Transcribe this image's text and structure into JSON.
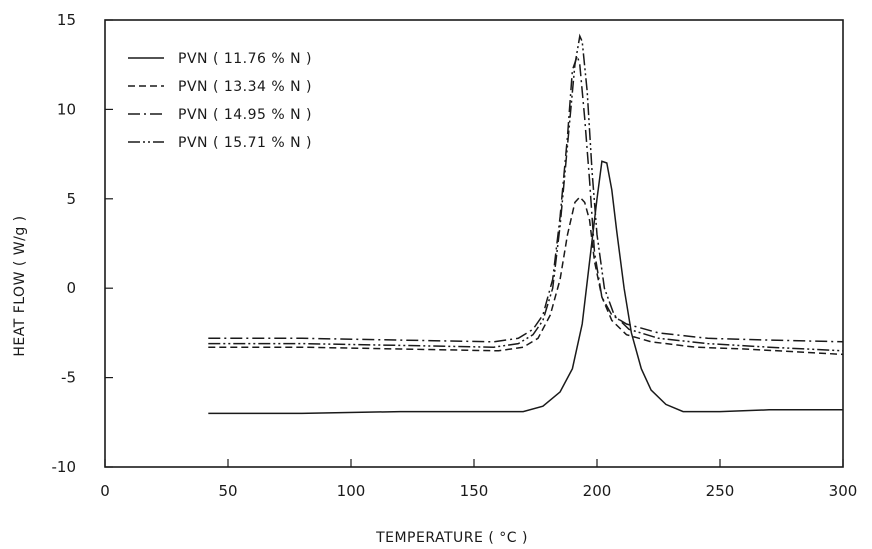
{
  "chart_data": {
    "type": "line",
    "title": "",
    "xlabel": "TEMPERATURE ( °C )",
    "ylabel": "HEAT FLOW ( W/g )",
    "xlim": [
      0,
      300
    ],
    "ylim": [
      -10,
      15
    ],
    "x_ticks": [
      0,
      50,
      100,
      150,
      200,
      250,
      300
    ],
    "x_tick_labels": [
      "0",
      "50",
      "100",
      "150",
      "200",
      "250",
      "300"
    ],
    "y_ticks": [
      -10,
      -5,
      0,
      5,
      10,
      15
    ],
    "y_tick_labels": [
      "-10",
      "-5",
      "0",
      "5",
      "10",
      "15"
    ],
    "grid": false,
    "legend_position": "top-left",
    "series": [
      {
        "name": "PVN ( 11.76 % N )",
        "dash": "solid",
        "points": [
          [
            42,
            -7.0
          ],
          [
            80,
            -7.0
          ],
          [
            120,
            -6.9
          ],
          [
            150,
            -6.9
          ],
          [
            170,
            -6.9
          ],
          [
            178,
            -6.6
          ],
          [
            185,
            -5.8
          ],
          [
            190,
            -4.5
          ],
          [
            194,
            -2.0
          ],
          [
            197,
            1.5
          ],
          [
            200,
            5.0
          ],
          [
            202,
            7.1
          ],
          [
            204,
            7.0
          ],
          [
            206,
            5.5
          ],
          [
            208,
            3.2
          ],
          [
            211,
            0.0
          ],
          [
            214,
            -2.5
          ],
          [
            218,
            -4.5
          ],
          [
            222,
            -5.7
          ],
          [
            228,
            -6.5
          ],
          [
            235,
            -6.9
          ],
          [
            250,
            -6.9
          ],
          [
            270,
            -6.8
          ],
          [
            300,
            -6.8
          ]
        ]
      },
      {
        "name": "PVN ( 13.34 % N )",
        "dash": "dashed",
        "points": [
          [
            42,
            -3.3
          ],
          [
            80,
            -3.3
          ],
          [
            120,
            -3.4
          ],
          [
            160,
            -3.5
          ],
          [
            170,
            -3.3
          ],
          [
            176,
            -2.8
          ],
          [
            181,
            -1.5
          ],
          [
            185,
            0.5
          ],
          [
            188,
            3.0
          ],
          [
            191,
            4.8
          ],
          [
            193,
            5.1
          ],
          [
            195,
            4.8
          ],
          [
            197,
            3.8
          ],
          [
            199,
            1.5
          ],
          [
            202,
            -0.5
          ],
          [
            206,
            -1.8
          ],
          [
            212,
            -2.6
          ],
          [
            222,
            -3.0
          ],
          [
            240,
            -3.3
          ],
          [
            260,
            -3.4
          ],
          [
            300,
            -3.7
          ]
        ]
      },
      {
        "name": "PVN ( 14.95 % N )",
        "dash": "dash-dot",
        "points": [
          [
            42,
            -2.8
          ],
          [
            80,
            -2.8
          ],
          [
            120,
            -2.9
          ],
          [
            158,
            -3.0
          ],
          [
            168,
            -2.8
          ],
          [
            174,
            -2.3
          ],
          [
            178,
            -1.5
          ],
          [
            182,
            0.5
          ],
          [
            185,
            4.0
          ],
          [
            188,
            8.5
          ],
          [
            190,
            12.2
          ],
          [
            192,
            13.0
          ],
          [
            193,
            12.5
          ],
          [
            195,
            9.5
          ],
          [
            197,
            6.0
          ],
          [
            199,
            2.0
          ],
          [
            202,
            -0.5
          ],
          [
            206,
            -1.5
          ],
          [
            212,
            -2.0
          ],
          [
            225,
            -2.5
          ],
          [
            245,
            -2.8
          ],
          [
            270,
            -2.9
          ],
          [
            300,
            -3.0
          ]
        ]
      },
      {
        "name": "PVN ( 15.71 % N )",
        "dash": "dash-dot-dot",
        "points": [
          [
            42,
            -3.1
          ],
          [
            80,
            -3.1
          ],
          [
            120,
            -3.2
          ],
          [
            158,
            -3.3
          ],
          [
            168,
            -3.1
          ],
          [
            174,
            -2.6
          ],
          [
            178,
            -1.8
          ],
          [
            182,
            0.0
          ],
          [
            185,
            3.5
          ],
          [
            188,
            8.0
          ],
          [
            191,
            12.5
          ],
          [
            193,
            14.1
          ],
          [
            194,
            13.8
          ],
          [
            196,
            11.0
          ],
          [
            198,
            6.5
          ],
          [
            200,
            3.0
          ],
          [
            203,
            0.0
          ],
          [
            207,
            -1.5
          ],
          [
            213,
            -2.3
          ],
          [
            225,
            -2.8
          ],
          [
            245,
            -3.1
          ],
          [
            270,
            -3.3
          ],
          [
            300,
            -3.5
          ]
        ]
      }
    ]
  }
}
